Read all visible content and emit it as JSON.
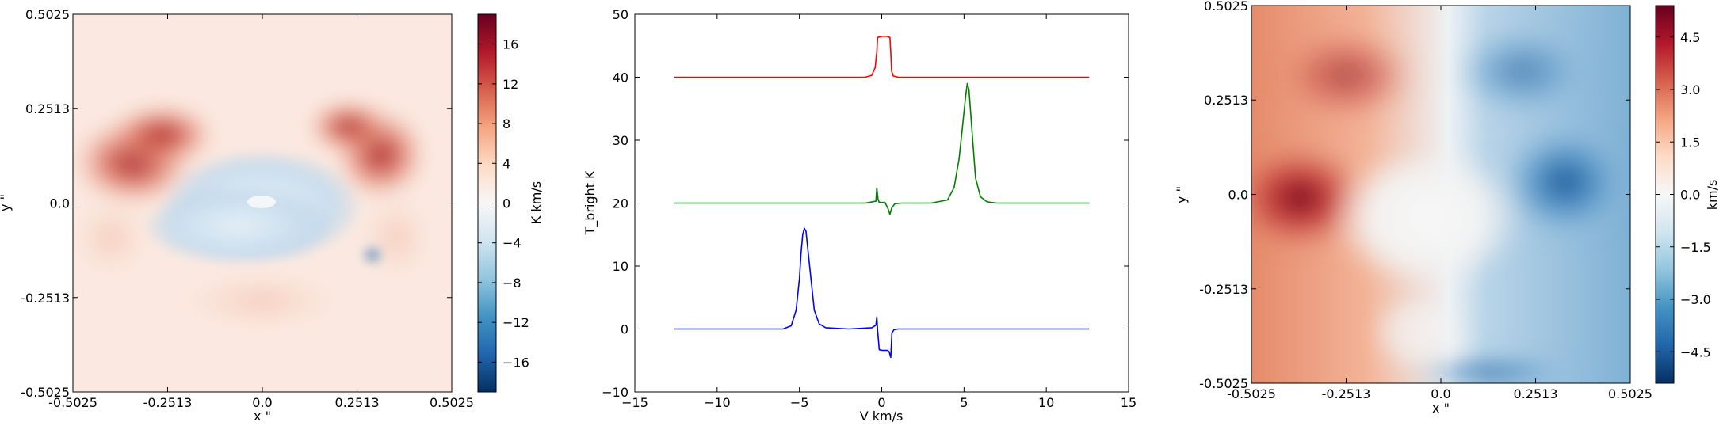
{
  "chart_data": [
    {
      "type": "heatmap",
      "xlabel": "x \"",
      "ylabel": "y \"",
      "xlim": [
        -0.5025,
        0.5025
      ],
      "ylim": [
        -0.5025,
        0.5025
      ],
      "xticks": [
        "-0.5025",
        "-0.2513",
        "0.0",
        "0.2513",
        "0.5025"
      ],
      "yticks": [
        "-0.5025",
        "-0.2513",
        "0.0",
        "0.2513",
        "0.5025"
      ],
      "colormap": "RdBu_r",
      "colorbar": {
        "label": "K km/s",
        "range": [
          -19,
          19
        ],
        "ticks": [
          "16",
          "12",
          "8",
          "4",
          "0",
          "−4",
          "−8",
          "−12",
          "−16"
        ],
        "tick_values": [
          16,
          12,
          8,
          4,
          0,
          -4,
          -8,
          -12,
          -16
        ]
      }
    },
    {
      "type": "line",
      "xlabel": "V km/s",
      "ylabel": "T_bright K",
      "xlim": [
        -15,
        15
      ],
      "ylim": [
        -10,
        50
      ],
      "xticks": [
        "−15",
        "−10",
        "−5",
        "0",
        "5",
        "10",
        "15"
      ],
      "yticks": [
        "−10",
        "0",
        "10",
        "20",
        "30",
        "40",
        "50"
      ],
      "series": [
        {
          "color": "#ff0000",
          "x": [
            -12.6,
            -1.0,
            -0.6,
            -0.4,
            -0.3,
            -0.25,
            0.0,
            0.3,
            0.5,
            0.55,
            0.6,
            0.7,
            1.0,
            12.6
          ],
          "y": [
            40,
            40,
            40.3,
            41.5,
            44,
            46.3,
            46.5,
            46.5,
            46.3,
            44,
            41,
            40.2,
            40,
            40
          ]
        },
        {
          "color": "#008000",
          "x": [
            -12.6,
            -1.0,
            -0.35,
            -0.3,
            -0.22,
            -0.15,
            0.2,
            0.4,
            0.5,
            0.6,
            0.8,
            1.2,
            3.0,
            4.0,
            4.4,
            4.7,
            4.9,
            5.1,
            5.2,
            5.3,
            5.5,
            5.7,
            6.0,
            6.4,
            7.0,
            12.6
          ],
          "y": [
            20,
            20,
            20.3,
            22.4,
            20.6,
            20.1,
            20.1,
            19.0,
            18.2,
            19.2,
            19.9,
            20,
            20,
            20.5,
            22.5,
            27,
            32,
            37,
            39,
            38,
            31,
            24,
            21,
            20.2,
            20,
            20
          ]
        },
        {
          "color": "#0000ff",
          "x": [
            -12.6,
            -6.0,
            -5.5,
            -5.2,
            -5.0,
            -4.9,
            -4.8,
            -4.7,
            -4.6,
            -4.5,
            -4.3,
            -4.1,
            -3.8,
            -3.4,
            -2.0,
            -0.6,
            -0.35,
            -0.3,
            -0.25,
            -0.15,
            0.05,
            0.35,
            0.45,
            0.55,
            0.62,
            0.75,
            1.0,
            12.6
          ],
          "y": [
            0,
            0,
            0.5,
            3,
            8,
            12,
            15,
            16,
            15.5,
            13,
            8,
            3,
            0.8,
            0.2,
            0,
            0.2,
            0.6,
            1.9,
            -0.2,
            -3.3,
            -3.4,
            -3.4,
            -3.6,
            -4.5,
            -0.6,
            -0.1,
            0,
            0
          ]
        }
      ]
    },
    {
      "type": "heatmap",
      "xlabel": "x \"",
      "ylabel": "y \"",
      "xlim": [
        -0.5025,
        0.5025
      ],
      "ylim": [
        -0.5025,
        0.5025
      ],
      "xticks": [
        "-0.5025",
        "-0.2513",
        "0.0",
        "0.2513",
        "0.5025"
      ],
      "yticks": [
        "-0.5025",
        "-0.2513",
        "0.0",
        "0.2513",
        "0.5025"
      ],
      "colormap": "RdBu_r",
      "colorbar": {
        "label": "km/s",
        "range": [
          -5.4,
          5.4
        ],
        "ticks": [
          "4.5",
          "3.0",
          "1.5",
          "0.0",
          "−1.5",
          "−3.0",
          "−4.5"
        ],
        "tick_values": [
          4.5,
          3.0,
          1.5,
          0.0,
          -1.5,
          -3.0,
          -4.5
        ]
      }
    }
  ]
}
